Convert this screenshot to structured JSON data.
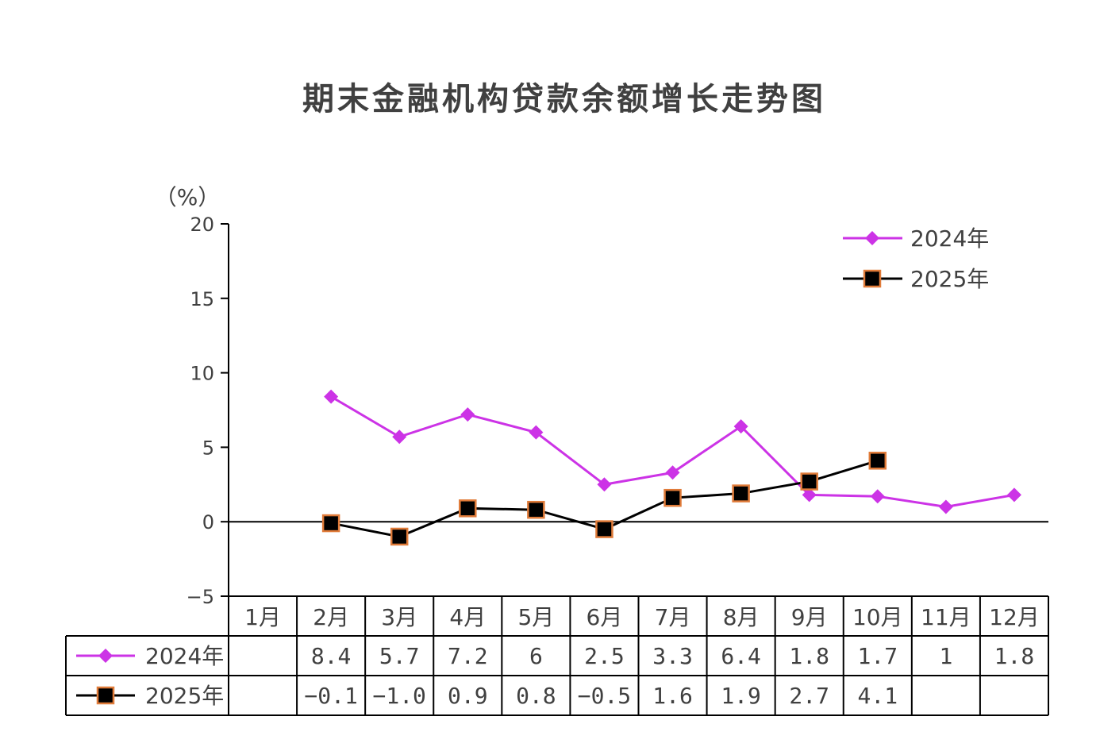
{
  "chart_data": {
    "type": "line",
    "title": "期末金融机构贷款余额增长走势图",
    "ylabel": "（%）",
    "ylim": [
      -5,
      20
    ],
    "yticks": [
      "−5",
      "0",
      "5",
      "10",
      "15",
      "20"
    ],
    "yticks_values": [
      -5,
      0,
      5,
      10,
      15,
      20
    ],
    "categories": [
      "1月",
      "2月",
      "3月",
      "4月",
      "5月",
      "6月",
      "7月",
      "8月",
      "9月",
      "10月",
      "11月",
      "12月"
    ],
    "legend_position": "top-right",
    "series": [
      {
        "name": "2024年",
        "color": "#CC33E6",
        "marker": "diamond",
        "values": [
          null,
          8.4,
          5.7,
          7.2,
          6,
          2.5,
          3.3,
          6.4,
          1.8,
          1.7,
          1,
          1.8
        ],
        "labels": [
          "",
          "8.4",
          "5.7",
          "7.2",
          "6",
          "2.5",
          "3.3",
          "6.4",
          "1.8",
          "1.7",
          "1",
          "1.8"
        ]
      },
      {
        "name": "2025年",
        "color": "#000000",
        "marker_edge": "#E07B39",
        "marker": "square",
        "values": [
          null,
          -0.1,
          -1.0,
          0.9,
          0.8,
          -0.5,
          1.6,
          1.9,
          2.7,
          4.1,
          null,
          null
        ],
        "labels": [
          "",
          "−0.1",
          "−1.0",
          "0.9",
          "0.8",
          "−0.5",
          "1.6",
          "1.9",
          "2.7",
          "4.1",
          "",
          ""
        ]
      }
    ]
  }
}
